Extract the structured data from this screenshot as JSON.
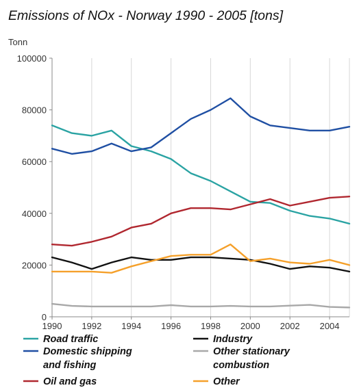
{
  "chart_data": {
    "type": "line",
    "title": "Emissions of NOx - Norway 1990 - 2005 [tons]",
    "ylabel": "Tonn",
    "xlabel": "",
    "ylim": [
      0,
      100000
    ],
    "xlim": [
      1990,
      2005
    ],
    "yticks": [
      "0",
      "20000",
      "40000",
      "60000",
      "80000",
      "100000"
    ],
    "ytick_values": [
      0,
      20000,
      40000,
      60000,
      80000,
      100000
    ],
    "xticks": [
      "1990",
      "1992",
      "1994",
      "1996",
      "1998",
      "2000",
      "2002",
      "2004"
    ],
    "xtick_values": [
      1990,
      1992,
      1994,
      1996,
      1998,
      2000,
      2002,
      2004
    ],
    "grid": "vertical",
    "legend_position": "bottom",
    "x": [
      1990,
      1991,
      1992,
      1993,
      1994,
      1995,
      1996,
      1997,
      1998,
      1999,
      2000,
      2001,
      2002,
      2003,
      2004,
      2005
    ],
    "series": [
      {
        "name": "Road traffic",
        "color": "#2aa3a3",
        "values": [
          74000,
          71000,
          70000,
          72000,
          66000,
          64000,
          61000,
          55500,
          52500,
          48500,
          44500,
          44000,
          41000,
          39000,
          38000,
          36000
        ]
      },
      {
        "name": "Domestic shipping and fishing",
        "legend_lines": [
          "Domestic shipping",
          "and fishing"
        ],
        "color": "#1f4fa3",
        "values": [
          65000,
          63000,
          64000,
          67000,
          64000,
          65500,
          71000,
          76500,
          80000,
          84500,
          77500,
          74000,
          73000,
          72000,
          72000,
          73500
        ]
      },
      {
        "name": "Oil and gas",
        "color": "#b0272f",
        "values": [
          28000,
          27500,
          29000,
          31000,
          34500,
          36000,
          40000,
          42000,
          42000,
          41500,
          43500,
          45500,
          43000,
          44500,
          46000,
          46500
        ]
      },
      {
        "name": "Industry",
        "color": "#111111",
        "values": [
          23000,
          21000,
          18500,
          21000,
          23000,
          22000,
          22000,
          23000,
          23000,
          22500,
          22000,
          20500,
          18500,
          19500,
          19000,
          17500
        ]
      },
      {
        "name": "Other stationary combustion",
        "legend_lines": [
          "Other stationary",
          "combustion"
        ],
        "color": "#a8a8a8",
        "values": [
          5000,
          4200,
          4000,
          4000,
          4000,
          4000,
          4500,
          4000,
          4000,
          4200,
          4000,
          4000,
          4300,
          4600,
          3800,
          3600
        ]
      },
      {
        "name": "Other",
        "color": "#f5a02a",
        "values": [
          17500,
          17500,
          17500,
          17000,
          19500,
          21500,
          23500,
          24000,
          24000,
          28000,
          21500,
          22500,
          21000,
          20500,
          22000,
          20000
        ]
      }
    ]
  }
}
